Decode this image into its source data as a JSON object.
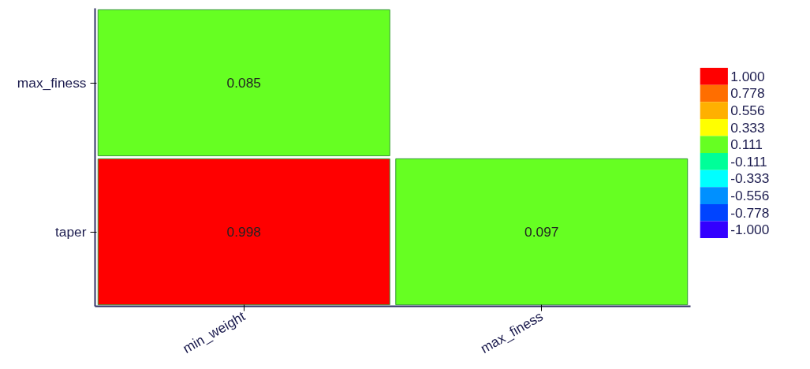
{
  "chart_data": {
    "type": "heatmap",
    "categories": [
      "min_weight",
      "max_finess"
    ],
    "y_categories": [
      "max_finess",
      "taper"
    ],
    "cells": [
      [
        0.085,
        null
      ],
      [
        0.998,
        0.097
      ]
    ],
    "data_labels": true,
    "clim": [
      -1.111,
      1.111
    ],
    "cticks": [
      {
        "value": 1,
        "label": "1.000"
      },
      {
        "value": 0.778,
        "label": "0.778"
      },
      {
        "value": 0.556,
        "label": "0.556"
      },
      {
        "value": 0.333,
        "label": "0.333"
      },
      {
        "value": 0.111,
        "label": "0.111"
      },
      {
        "value": -0.111,
        "label": "-0.111"
      },
      {
        "value": -0.333,
        "label": "-0.333"
      },
      {
        "value": -0.556,
        "label": "-0.556"
      },
      {
        "value": -0.778,
        "label": "-0.778"
      },
      {
        "value": -1,
        "label": "-1.000"
      }
    ],
    "colors": [
      "#ff0000",
      "#ff6e00",
      "#ffb000",
      "#ffff00",
      "#66ff22",
      "#00ff99",
      "#00ffff",
      "#0090ff",
      "#0044ff",
      "#3300ff"
    ]
  }
}
